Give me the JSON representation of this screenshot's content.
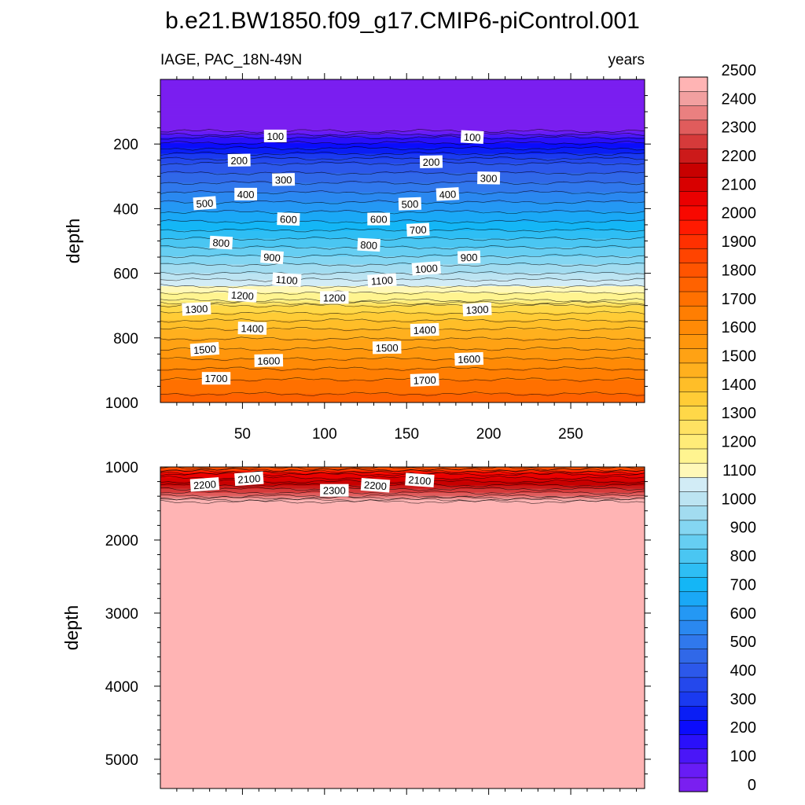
{
  "chart_data": {
    "type": "heatmap",
    "title": "b.e21.BW1850.f09_g17.CMIP6-piControl.001",
    "left_subtitle": "IAGE, PAC_18N-49N",
    "right_subtitle": "years",
    "xlabel": "",
    "colorbar": {
      "levels": [
        0,
        50,
        100,
        150,
        200,
        250,
        300,
        350,
        400,
        450,
        500,
        550,
        600,
        650,
        700,
        750,
        800,
        850,
        900,
        950,
        1000,
        1050,
        1100,
        1150,
        1200,
        1250,
        1300,
        1350,
        1400,
        1450,
        1500,
        1550,
        1600,
        1650,
        1700,
        1750,
        1800,
        1850,
        1900,
        1950,
        2000,
        2050,
        2100,
        2150,
        2200,
        2250,
        2300,
        2350,
        2400,
        2450,
        2500
      ],
      "tick_labels": [
        "0",
        "100",
        "200",
        "300",
        "400",
        "500",
        "600",
        "700",
        "800",
        "900",
        "1000",
        "1100",
        "1200",
        "1300",
        "1400",
        "1500",
        "1600",
        "1700",
        "1800",
        "1900",
        "2000",
        "2100",
        "2200",
        "2300",
        "2400",
        "2500"
      ],
      "colors": [
        "#7a1ff0",
        "#681cf5",
        "#4a16f7",
        "#2a10fa",
        "#0b0cfc",
        "#0a1ef5",
        "#1a3af0",
        "#2448ec",
        "#2c58ea",
        "#3068e8",
        "#3078ec",
        "#2a88f0",
        "#2498f4",
        "#1aa8f6",
        "#14b6f6",
        "#2ebef4",
        "#4ac6f2",
        "#66cef2",
        "#84d6f2",
        "#a2dcf0",
        "#bce4f2",
        "#d2ecf6",
        "#fff8b8",
        "#fff490",
        "#ffec78",
        "#ffe262",
        "#ffd848",
        "#ffcc36",
        "#ffbe28",
        "#ffb01e",
        "#ffa214",
        "#ff960c",
        "#ff8a06",
        "#ff7e02",
        "#ff7000",
        "#ff6200",
        "#ff5400",
        "#ff4400",
        "#ff3000",
        "#ff1a00",
        "#f80800",
        "#ea0000",
        "#d80000",
        "#c80000",
        "#cc1a1a",
        "#d63a3a",
        "#e05c5c",
        "#ea8080",
        "#f2a0a0",
        "#ffb4b4"
      ]
    },
    "panels": [
      {
        "ylabel": "depth",
        "xlim": [
          0,
          295
        ],
        "ylim": [
          0,
          1000
        ],
        "y_inverted": true,
        "xticks": [
          50,
          100,
          150,
          200,
          250
        ],
        "xtick_labels": [
          "50",
          "100",
          "150",
          "200",
          "250"
        ],
        "yticks": [
          200,
          400,
          600,
          800,
          1000
        ],
        "ytick_labels": [
          "200",
          "400",
          "600",
          "800",
          "1000"
        ],
        "depth_profile": {
          "depth": [
            0,
            40,
            100,
            150,
            180,
            230,
            260,
            320,
            380,
            440,
            520,
            600,
            640,
            660,
            680,
            700,
            760,
            840,
            920,
            1000
          ],
          "age": [
            0,
            0,
            0,
            0,
            150,
            300,
            400,
            500,
            600,
            700,
            850,
            1000,
            1100,
            1150,
            1175,
            1300,
            1430,
            1560,
            1690,
            1780
          ]
        },
        "contour_labels": [
          {
            "text": "100",
            "x": 70,
            "depth": 175
          },
          {
            "text": "100",
            "x": 190,
            "depth": 178
          },
          {
            "text": "200",
            "x": 48,
            "depth": 250
          },
          {
            "text": "200",
            "x": 165,
            "depth": 255
          },
          {
            "text": "300",
            "x": 75,
            "depth": 310
          },
          {
            "text": "300",
            "x": 200,
            "depth": 305
          },
          {
            "text": "400",
            "x": 52,
            "depth": 355
          },
          {
            "text": "400",
            "x": 175,
            "depth": 355
          },
          {
            "text": "500",
            "x": 27,
            "depth": 383
          },
          {
            "text": "500",
            "x": 152,
            "depth": 385
          },
          {
            "text": "600",
            "x": 78,
            "depth": 432
          },
          {
            "text": "600",
            "x": 133,
            "depth": 432
          },
          {
            "text": "700",
            "x": 157,
            "depth": 465
          },
          {
            "text": "800",
            "x": 37,
            "depth": 505
          },
          {
            "text": "800",
            "x": 127,
            "depth": 512
          },
          {
            "text": "900",
            "x": 68,
            "depth": 550
          },
          {
            "text": "900",
            "x": 188,
            "depth": 550
          },
          {
            "text": "1000",
            "x": 162,
            "depth": 585
          },
          {
            "text": "1100",
            "x": 77,
            "depth": 620
          },
          {
            "text": "1100",
            "x": 135,
            "depth": 622
          },
          {
            "text": "1200",
            "x": 50,
            "depth": 668
          },
          {
            "text": "1200",
            "x": 106,
            "depth": 675
          },
          {
            "text": "1300",
            "x": 22,
            "depth": 710
          },
          {
            "text": "1300",
            "x": 193,
            "depth": 712
          },
          {
            "text": "1400",
            "x": 56,
            "depth": 770
          },
          {
            "text": "1400",
            "x": 161,
            "depth": 775
          },
          {
            "text": "1500",
            "x": 27,
            "depth": 835
          },
          {
            "text": "1500",
            "x": 138,
            "depth": 830
          },
          {
            "text": "1600",
            "x": 66,
            "depth": 870
          },
          {
            "text": "1600",
            "x": 188,
            "depth": 865
          },
          {
            "text": "1700",
            "x": 34,
            "depth": 925
          },
          {
            "text": "1700",
            "x": 161,
            "depth": 930
          }
        ]
      },
      {
        "ylabel": "depth",
        "xlim": [
          0,
          295
        ],
        "ylim": [
          1000,
          5400
        ],
        "y_inverted": true,
        "xticks": [
          50,
          100,
          150,
          200,
          250
        ],
        "yticks": [
          1000,
          2000,
          3000,
          4000,
          5000
        ],
        "ytick_labels": [
          "1000",
          "2000",
          "3000",
          "4000",
          "5000"
        ],
        "depth_profile": {
          "depth": [
            1000,
            1100,
            1200,
            1300,
            1400,
            1450,
            1500,
            5400
          ],
          "age": [
            1800,
            2050,
            2150,
            2250,
            2350,
            2450,
            2550,
            2550
          ]
        },
        "contour_labels": [
          {
            "text": "2200",
            "x": 27,
            "depth": 1240
          },
          {
            "text": "2100",
            "x": 54,
            "depth": 1160
          },
          {
            "text": "2300",
            "x": 106,
            "depth": 1320
          },
          {
            "text": "2200",
            "x": 131,
            "depth": 1250
          },
          {
            "text": "2100",
            "x": 158,
            "depth": 1180
          }
        ]
      }
    ]
  }
}
